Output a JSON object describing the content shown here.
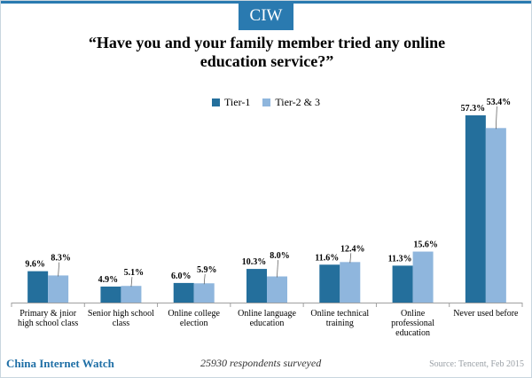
{
  "brand": "CIW",
  "title_line1": "“Have you and your family member tried any online",
  "title_line2": "education service?”",
  "colors": {
    "tier1": "#246f9c",
    "tier23": "#8fb6dd",
    "accent": "#2a7ab0",
    "axis": "#a0a0a0"
  },
  "footer": {
    "site": "China Internet Watch",
    "note": "25930 respondents surveyed",
    "source": "Source: Tencent, Feb 2015"
  },
  "chart_data": {
    "type": "bar",
    "categories": [
      [
        "Primary & jnior",
        "high school class"
      ],
      [
        "Senior high school",
        "class"
      ],
      [
        "Online college",
        "election"
      ],
      [
        "Online language",
        "education"
      ],
      [
        "Online technical",
        "training"
      ],
      [
        "Online",
        "professional",
        "education"
      ],
      [
        "Never used before"
      ]
    ],
    "series": [
      {
        "name": "Tier-1",
        "values": [
          9.6,
          4.9,
          6.0,
          10.3,
          11.6,
          11.3,
          57.3
        ]
      },
      {
        "name": "Tier-2 & 3",
        "values": [
          8.3,
          5.1,
          5.9,
          8.0,
          12.4,
          15.6,
          53.4
        ]
      }
    ],
    "value_suffix": "%",
    "ylim": [
      0,
      60
    ],
    "grid": false,
    "legend_position": "top-center"
  }
}
